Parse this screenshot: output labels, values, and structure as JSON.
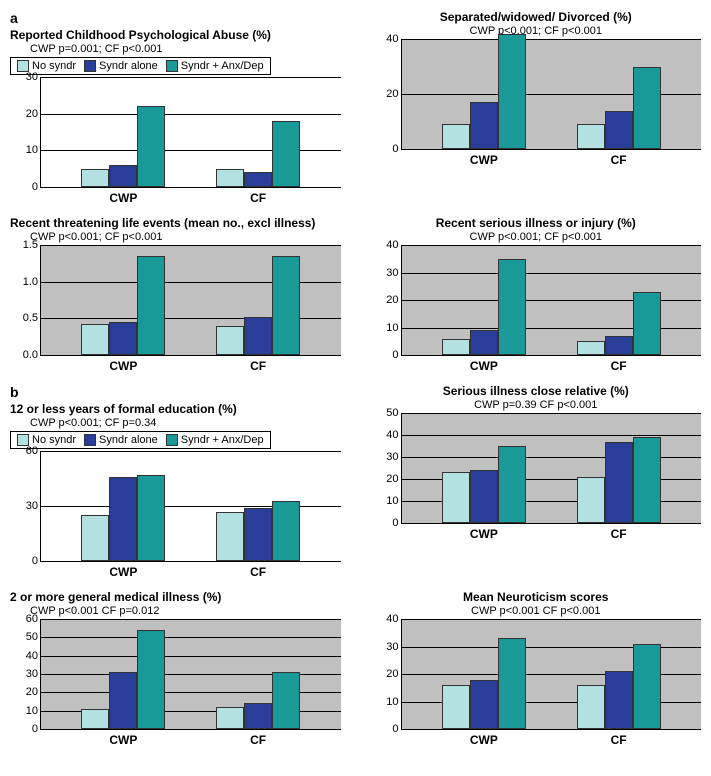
{
  "colors": {
    "no_syndr": "#b3e0e0",
    "syndr_alone": "#2a3d99",
    "syndr_anx": "#1a9999",
    "plot_bg_gray": "#c0c0c0"
  },
  "legend_labels": {
    "no_syndr": "No syndr",
    "syndr_alone": "Syndr alone",
    "syndr_anx": "Syndr + Anx/Dep"
  },
  "x_categories": [
    "CWP",
    "CF"
  ],
  "section_a": "a",
  "section_b": "b",
  "charts": [
    {
      "id": "abuse",
      "title": "Reported Childhood Psychological Abuse (%)",
      "sub": "CWP p=0.001;    CF p<0.001",
      "show_legend": true,
      "ylim": [
        0,
        30
      ],
      "ytick_step": 10,
      "gray_bg": false,
      "groups": [
        [
          5,
          6,
          22
        ],
        [
          5,
          4,
          18
        ]
      ]
    },
    {
      "id": "separated",
      "title": "Separated/widowed/ Divorced (%)",
      "sub": "CWP p<0.001; CF p<0.001",
      "show_legend": false,
      "ylim": [
        0,
        40
      ],
      "ytick_step": 20,
      "gray_bg": true,
      "groups": [
        [
          9,
          17,
          42
        ],
        [
          9,
          14,
          30
        ]
      ]
    },
    {
      "id": "threat",
      "title": "Recent threatening life events (mean no., excl illness)",
      "sub": "CWP p<0.001;   CF p<0.001",
      "show_legend": false,
      "ylim": [
        0,
        1.5
      ],
      "ytick_step": 0.5,
      "gray_bg": true,
      "groups": [
        [
          0.42,
          0.45,
          1.35
        ],
        [
          0.4,
          0.52,
          1.35
        ]
      ]
    },
    {
      "id": "illness",
      "title": "Recent serious illness or injury (%)",
      "sub": "CWP p<0.001;  CF p<0.001",
      "show_legend": false,
      "ylim": [
        0,
        40
      ],
      "ytick_step": 10,
      "gray_bg": true,
      "groups": [
        [
          6,
          9,
          35
        ],
        [
          5,
          7,
          23
        ]
      ]
    },
    {
      "id": "education",
      "title": "12 or less years of formal education (%)",
      "sub": "CWP p<0.001;   CF p=0.34",
      "show_legend": true,
      "ylim": [
        0,
        60
      ],
      "ytick_step": 30,
      "gray_bg": false,
      "groups": [
        [
          25,
          46,
          47
        ],
        [
          27,
          29,
          33
        ]
      ]
    },
    {
      "id": "relative",
      "title": "Serious illness close relative (%)",
      "sub": "CWP p=0.39   CF p<0.001",
      "show_legend": false,
      "ylim": [
        0,
        50
      ],
      "ytick_step": 10,
      "gray_bg": true,
      "groups": [
        [
          23,
          24,
          35
        ],
        [
          21,
          37,
          39
        ]
      ]
    },
    {
      "id": "medical",
      "title": "2 or more general medical illness (%)",
      "sub": "CWP p<0.001   CF p=0.012",
      "show_legend": false,
      "ylim": [
        0,
        60
      ],
      "ytick_step": 10,
      "gray_bg": true,
      "groups": [
        [
          11,
          31,
          54
        ],
        [
          12,
          14,
          31
        ]
      ]
    },
    {
      "id": "neuroticism",
      "title": "Mean Neuroticism scores",
      "sub": "CWP p<0.001   CF p<0.001",
      "show_legend": false,
      "ylim": [
        0,
        40
      ],
      "ytick_step": 10,
      "gray_bg": true,
      "groups": [
        [
          16,
          18,
          33
        ],
        [
          16,
          21,
          31
        ]
      ]
    }
  ]
}
